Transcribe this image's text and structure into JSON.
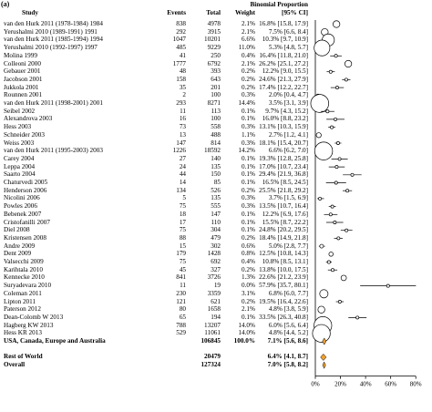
{
  "panel_label": "(a)",
  "columns": {
    "study": "Study",
    "events": "Events",
    "total": "Total",
    "weight": "Weight",
    "estimate_line1": "Binomial Proportion",
    "estimate_line2": "[95% CI]"
  },
  "chart_data": {
    "type": "forest",
    "x_ticks": [
      "0%",
      "20%",
      "40%",
      "60%",
      "80%"
    ],
    "x_tick_values": [
      0,
      20,
      40,
      60,
      80
    ],
    "xlim": [
      0,
      90
    ],
    "colors": {
      "point": "#ffffff",
      "stroke": "#000000",
      "summary": "#f0a030"
    },
    "studies": [
      {
        "study": "van den Hurk 2011 (1978-1984) 1984",
        "events": "838",
        "total": "4978",
        "weight": "2.1%",
        "ci_text": "16.8% [15.8, 17.9]",
        "est": 16.8,
        "lo": 15.8,
        "hi": 17.9
      },
      {
        "study": "Yerushalmi 2010 (1989-1991) 1991",
        "events": "292",
        "total": "3915",
        "weight": "2.1%",
        "ci_text": "7.5% [6.6, 8.4]",
        "est": 7.5,
        "lo": 6.6,
        "hi": 8.4
      },
      {
        "study": "van den Hurk 2011 (1985-1994) 1994",
        "events": "1047",
        "total": "10201",
        "weight": "6.6%",
        "ci_text": "10.3% [9.7, 10.9]",
        "est": 10.3,
        "lo": 9.7,
        "hi": 10.9
      },
      {
        "study": "Yerushalmi 2010 (1992-1997) 1997",
        "events": "485",
        "total": "9229",
        "weight": "11.0%",
        "ci_text": "5.3% [4.8, 5.7]",
        "est": 5.3,
        "lo": 4.8,
        "hi": 5.7
      },
      {
        "study": "Molina 1999",
        "events": "41",
        "total": "250",
        "weight": "0.4%",
        "ci_text": "16.4% [11.8, 21.0]",
        "est": 16.4,
        "lo": 11.8,
        "hi": 21.0
      },
      {
        "study": "Colleoni 2000",
        "events": "1777",
        "total": "6792",
        "weight": "2.1%",
        "ci_text": "26.2% [25.1, 27.2]",
        "est": 26.2,
        "lo": 25.1,
        "hi": 27.2
      },
      {
        "study": "Gebauer 2001",
        "events": "48",
        "total": "393",
        "weight": "0.2%",
        "ci_text": "12.2% [9.0, 15.5]",
        "est": 12.2,
        "lo": 9.0,
        "hi": 15.5
      },
      {
        "study": "Jacobson 2001",
        "events": "158",
        "total": "643",
        "weight": "0.2%",
        "ci_text": "24.6% [21.3, 27.9]",
        "est": 24.6,
        "lo": 21.3,
        "hi": 27.9
      },
      {
        "study": "Jukkola 2001",
        "events": "35",
        "total": "201",
        "weight": "0.2%",
        "ci_text": "17.4% [12.2, 22.7]",
        "est": 17.4,
        "lo": 12.2,
        "hi": 22.7
      },
      {
        "study": "Rounnen 2001",
        "events": "2",
        "total": "100",
        "weight": "0.3%",
        "ci_text": "2.0% [0.4, 4.7]",
        "est": 2.0,
        "lo": 0.4,
        "hi": 4.7
      },
      {
        "study": "van den Hurk 2011 (1998-2001) 2001",
        "events": "293",
        "total": "8271",
        "weight": "14.4%",
        "ci_text": "3.5% [3.1, 3.9]",
        "est": 3.5,
        "lo": 3.1,
        "hi": 3.9
      },
      {
        "study": "Seibel 2002",
        "events": "11",
        "total": "113",
        "weight": "0.1%",
        "ci_text": "9.7% [4.3, 15.2]",
        "est": 9.7,
        "lo": 4.3,
        "hi": 15.2
      },
      {
        "study": "Alexandrova 2003",
        "events": "16",
        "total": "100",
        "weight": "0.1%",
        "ci_text": "16.0% [8.8, 23.2]",
        "est": 16.0,
        "lo": 8.8,
        "hi": 23.2
      },
      {
        "study": "Hess 2003",
        "events": "73",
        "total": "558",
        "weight": "0.3%",
        "ci_text": "13.1% [10.3, 15.9]",
        "est": 13.1,
        "lo": 10.3,
        "hi": 15.9
      },
      {
        "study": "Schneider 2003",
        "events": "13",
        "total": "488",
        "weight": "1.1%",
        "ci_text": "2.7% [1.2, 4.1]",
        "est": 2.7,
        "lo": 1.2,
        "hi": 4.1
      },
      {
        "study": "Weiss 2003",
        "events": "147",
        "total": "814",
        "weight": "0.3%",
        "ci_text": "18.1% [15.4, 20.7]",
        "est": 18.1,
        "lo": 15.4,
        "hi": 20.7
      },
      {
        "study": "van den Hurk 2011 (1995-2003) 2003",
        "events": "1226",
        "total": "18592",
        "weight": "14.2%",
        "ci_text": "6.6% [6.2, 7.0]",
        "est": 6.6,
        "lo": 6.2,
        "hi": 7.0
      },
      {
        "study": "Carey 2004",
        "events": "27",
        "total": "140",
        "weight": "0.1%",
        "ci_text": "19.3% [12.8, 25.8]",
        "est": 19.3,
        "lo": 12.8,
        "hi": 25.8
      },
      {
        "study": "Leppa 2004",
        "events": "24",
        "total": "135",
        "weight": "0.1%",
        "ci_text": "17.0% [10.7, 23.4]",
        "est": 17.0,
        "lo": 10.7,
        "hi": 23.4
      },
      {
        "study": "Saarto 2004",
        "events": "44",
        "total": "150",
        "weight": "0.1%",
        "ci_text": "29.4% [21.9, 36.8]",
        "est": 29.4,
        "lo": 21.9,
        "hi": 36.8
      },
      {
        "study": "Chaturvedi 2005",
        "events": "14",
        "total": "85",
        "weight": "0.1%",
        "ci_text": "16.5% [8.5, 24.5]",
        "est": 16.5,
        "lo": 8.5,
        "hi": 24.5
      },
      {
        "study": "Henderson 2006",
        "events": "134",
        "total": "526",
        "weight": "0.2%",
        "ci_text": "25.5% [21.8, 29.2]",
        "est": 25.5,
        "lo": 21.8,
        "hi": 29.2
      },
      {
        "study": "Nicolini 2006",
        "events": "5",
        "total": "135",
        "weight": "0.3%",
        "ci_text": "3.7% [1.5, 6.9]",
        "est": 3.7,
        "lo": 1.5,
        "hi": 6.9
      },
      {
        "study": "Powles 2006",
        "events": "75",
        "total": "555",
        "weight": "0.3%",
        "ci_text": "13.5% [10.7, 16.4]",
        "est": 13.5,
        "lo": 10.7,
        "hi": 16.4
      },
      {
        "study": "Bebenek 2007",
        "events": "18",
        "total": "147",
        "weight": "0.1%",
        "ci_text": "12.2% [6.9, 17.6]",
        "est": 12.2,
        "lo": 6.9,
        "hi": 17.6
      },
      {
        "study": "Cristofanilli 2007",
        "events": "17",
        "total": "110",
        "weight": "0.1%",
        "ci_text": "15.5% [8.7, 22.2]",
        "est": 15.5,
        "lo": 8.7,
        "hi": 22.2
      },
      {
        "study": "Diel 2008",
        "events": "75",
        "total": "304",
        "weight": "0.1%",
        "ci_text": "24.8% [20.2, 29.5]",
        "est": 24.8,
        "lo": 20.2,
        "hi": 29.5
      },
      {
        "study": "Kristensen 2008",
        "events": "88",
        "total": "479",
        "weight": "0.2%",
        "ci_text": "18.4% [14.9, 21.8]",
        "est": 18.4,
        "lo": 14.9,
        "hi": 21.8
      },
      {
        "study": "Andre 2009",
        "events": "15",
        "total": "302",
        "weight": "0.6%",
        "ci_text": "5.0% [2.8, 7.7]",
        "est": 5.0,
        "lo": 2.8,
        "hi": 7.7
      },
      {
        "study": "Dent 2009",
        "events": "179",
        "total": "1428",
        "weight": "0.8%",
        "ci_text": "12.5% [10.8, 14.3]",
        "est": 12.5,
        "lo": 10.8,
        "hi": 14.3
      },
      {
        "study": "Valsecchi 2009",
        "events": "75",
        "total": "692",
        "weight": "0.4%",
        "ci_text": "10.8% [8.5, 13.1]",
        "est": 10.8,
        "lo": 8.5,
        "hi": 13.1
      },
      {
        "study": "Karihtala 2010",
        "events": "45",
        "total": "327",
        "weight": "0.2%",
        "ci_text": "13.8% [10.0, 17.5]",
        "est": 13.8,
        "lo": 10.0,
        "hi": 17.5
      },
      {
        "study": "Kennecke 2010",
        "events": "841",
        "total": "3726",
        "weight": "1.3%",
        "ci_text": "22.6% [21.2, 23.9]",
        "est": 22.6,
        "lo": 21.2,
        "hi": 23.9
      },
      {
        "study": "Suryadevara 2010",
        "events": "11",
        "total": "19",
        "weight": "0.0%",
        "ci_text": "57.9% [35.7, 80.1]",
        "est": 57.9,
        "lo": 35.7,
        "hi": 80.1
      },
      {
        "study": "Coleman 2011",
        "events": "230",
        "total": "3359",
        "weight": "3.1%",
        "ci_text": "6.8% [6.0, 7.7]",
        "est": 6.8,
        "lo": 6.0,
        "hi": 7.7
      },
      {
        "study": "Lipton 2011",
        "events": "121",
        "total": "621",
        "weight": "0.2%",
        "ci_text": "19.5% [16.4, 22.6]",
        "est": 19.5,
        "lo": 16.4,
        "hi": 22.6
      },
      {
        "study": "Paterson 2012",
        "events": "80",
        "total": "1658",
        "weight": "2.1%",
        "ci_text": "4.8% [3.8, 5.9]",
        "est": 4.8,
        "lo": 3.8,
        "hi": 5.9
      },
      {
        "study": "Dean-Colomb W 2013",
        "events": "65",
        "total": "194",
        "weight": "0.1%",
        "ci_text": "33.5% [26.3, 40.8]",
        "est": 33.5,
        "lo": 26.3,
        "hi": 40.8
      },
      {
        "study": "Hagberg KW 2013",
        "events": "788",
        "total": "13207",
        "weight": "14.0%",
        "ci_text": "6.0% [5.6, 6.4]",
        "est": 6.0,
        "lo": 5.6,
        "hi": 6.4
      },
      {
        "study": "Hess KR 2013",
        "events": "529",
        "total": "11061",
        "weight": "14.0%",
        "ci_text": "4.8% [4.4, 5.2]",
        "est": 4.8,
        "lo": 4.4,
        "hi": 5.2
      }
    ],
    "subtotal": {
      "study": "USA, Canada, Europe and Australia",
      "events": "",
      "total": "106845",
      "weight": "100.0%",
      "ci_text": "7.1% [5.6, 8.6]",
      "est": 7.1,
      "lo": 5.6,
      "hi": 8.6
    },
    "rest": {
      "study": "Rest of World",
      "events": "",
      "total": "20479",
      "weight": "",
      "ci_text": "6.4% [4.1, 8.7]",
      "est": 6.4,
      "lo": 4.1,
      "hi": 8.7
    },
    "overall": {
      "study": "Overall",
      "events": "",
      "total": "127324",
      "weight": "",
      "ci_text": "7.0% [5.8, 8.2]",
      "est": 7.0,
      "lo": 5.8,
      "hi": 8.2
    }
  }
}
